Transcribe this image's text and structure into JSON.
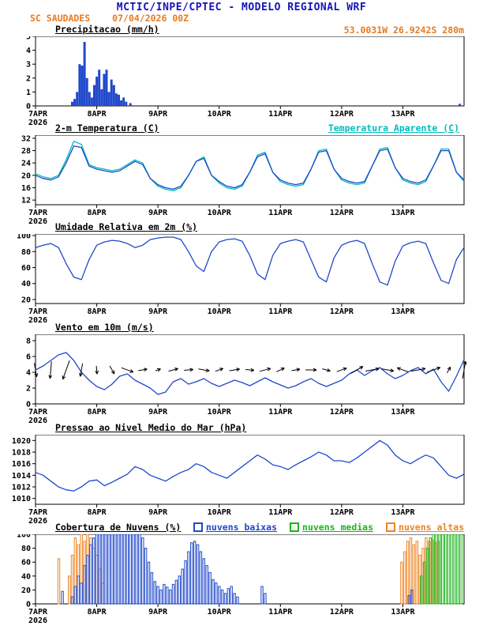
{
  "header": {
    "title": "MCTIC/INPE/CPTEC - MODELO REGIONAL WRF",
    "station": "SC SAUDADES",
    "run": "07/04/2026 00Z",
    "location": "53.0031W 26.9242S 280m",
    "title_color": "#1414b8",
    "accent_color": "#e87a20"
  },
  "x_axis": {
    "day_labels": [
      "7APR",
      "8APR",
      "9APR",
      "10APR",
      "11APR",
      "12APR",
      "13APR"
    ],
    "year_label": "2026",
    "t_range_days": [
      0,
      7
    ]
  },
  "chart_data": [
    {
      "id": "precipitacao",
      "type": "bar",
      "title": "Precipitacao (mm/h)",
      "ylim": [
        0,
        5
      ],
      "yticks": [
        0,
        1,
        2,
        3,
        4,
        5
      ],
      "series": [
        {
          "name": "precipitacao",
          "color": "#1f48cc",
          "points": [
            [
              0.6,
              0.3
            ],
            [
              0.64,
              0.5
            ],
            [
              0.68,
              1.0
            ],
            [
              0.72,
              3.0
            ],
            [
              0.76,
              2.9
            ],
            [
              0.8,
              4.6
            ],
            [
              0.84,
              2.0
            ],
            [
              0.88,
              1.0
            ],
            [
              0.92,
              0.6
            ],
            [
              0.96,
              1.5
            ],
            [
              1.0,
              2.1
            ],
            [
              1.04,
              2.6
            ],
            [
              1.08,
              1.2
            ],
            [
              1.12,
              2.3
            ],
            [
              1.16,
              2.6
            ],
            [
              1.2,
              1.0
            ],
            [
              1.24,
              1.9
            ],
            [
              1.28,
              1.5
            ],
            [
              1.32,
              0.9
            ],
            [
              1.36,
              0.8
            ],
            [
              1.4,
              0.4
            ],
            [
              1.44,
              0.6
            ],
            [
              1.48,
              0.3
            ],
            [
              1.55,
              0.2
            ],
            [
              6.93,
              0.15
            ]
          ]
        }
      ]
    },
    {
      "id": "temperatura",
      "type": "line",
      "title": "2-m Temperatura (C)",
      "right_label": {
        "text": "Temperatura Aparente (C)",
        "color": "#00bcbc"
      },
      "ylim": [
        10.5,
        33
      ],
      "yticks": [
        12,
        16,
        20,
        24,
        28,
        32
      ],
      "t_step": 0.125,
      "series": [
        {
          "name": "temperatura-aparente",
          "color": "#00bcbc",
          "values": [
            20.5,
            19.5,
            19,
            20,
            25,
            31,
            30,
            23.5,
            22.5,
            22,
            21.5,
            22,
            23.5,
            25,
            24,
            19,
            16.5,
            15.5,
            15,
            16,
            20,
            24.5,
            26,
            20,
            17.5,
            16,
            15.5,
            16.5,
            21,
            26.5,
            27.5,
            21,
            18,
            17,
            16.5,
            17,
            22,
            28,
            28.5,
            22,
            18.5,
            17.5,
            17,
            17.5,
            23,
            28.5,
            29,
            22.5,
            18.5,
            17.5,
            17,
            18,
            23,
            28.5,
            28.5,
            21,
            18
          ]
        },
        {
          "name": "temperatura-2m",
          "color": "#1f48cc",
          "values": [
            20,
            19,
            18.5,
            19.5,
            24,
            29.5,
            29,
            23,
            22,
            21.5,
            21,
            21.5,
            23,
            24.5,
            23.5,
            19,
            17,
            16,
            15.5,
            16.5,
            20,
            24.5,
            25.5,
            20,
            18,
            16.5,
            16,
            17,
            21,
            26,
            27,
            21,
            18.5,
            17.5,
            17,
            17.5,
            22,
            27.5,
            28,
            22,
            19,
            18,
            17.5,
            18,
            23,
            28,
            28.5,
            22.5,
            19,
            18,
            17.5,
            18.5,
            23,
            28,
            28,
            21,
            18.5
          ]
        }
      ]
    },
    {
      "id": "umidade",
      "type": "line",
      "title": "Umidade Relativa em 2m (%)",
      "ylim": [
        15,
        102
      ],
      "yticks": [
        20,
        40,
        60,
        80,
        100
      ],
      "t_step": 0.125,
      "series": [
        {
          "name": "umidade-relativa",
          "color": "#1f48cc",
          "values": [
            85,
            88,
            90,
            85,
            65,
            48,
            45,
            70,
            88,
            92,
            94,
            93,
            90,
            85,
            88,
            95,
            97,
            98,
            98,
            95,
            80,
            62,
            55,
            80,
            92,
            95,
            96,
            93,
            75,
            52,
            45,
            75,
            90,
            93,
            95,
            92,
            70,
            48,
            42,
            72,
            88,
            92,
            94,
            90,
            65,
            42,
            38,
            68,
            87,
            91,
            93,
            90,
            66,
            44,
            40,
            70,
            85
          ]
        }
      ]
    },
    {
      "id": "vento",
      "type": "line",
      "title": "Vento em 10m (m/s)",
      "ylim": [
        0,
        8.8
      ],
      "yticks": [
        0,
        2,
        4,
        6,
        8
      ],
      "t_step": 0.125,
      "series": [
        {
          "name": "vento-velocidade",
          "color": "#1f48cc",
          "values": [
            4.3,
            4.8,
            5.5,
            6.2,
            6.5,
            5.5,
            4,
            3,
            2.2,
            1.8,
            2.5,
            3.5,
            3.8,
            3,
            2.5,
            2,
            1.2,
            1.5,
            2.8,
            3.2,
            2.5,
            2.8,
            3.2,
            2.6,
            2.2,
            2.6,
            3,
            2.7,
            2.3,
            2.8,
            3.3,
            2.8,
            2.4,
            2,
            2.3,
            2.8,
            3.2,
            2.6,
            2.2,
            2.6,
            3,
            3.8,
            4.3,
            3.6,
            4.2,
            4.6,
            3.8,
            3.2,
            3.6,
            4.2,
            4.6,
            3.8,
            4.4,
            2.8,
            1.6,
            3.5,
            5.6
          ]
        }
      ],
      "arrows": {
        "name": "vento-vetores",
        "color": "#000000",
        "t_step": 0.25,
        "anchor_value": 4.3,
        "angles_deg": [
          -80,
          -95,
          -110,
          -100,
          -85,
          -60,
          -20,
          10,
          20,
          15,
          5,
          -10,
          20,
          10,
          -5,
          15,
          25,
          10,
          0,
          -15,
          20,
          30,
          10,
          -10,
          160,
          10,
          20,
          60,
          80
        ]
      }
    },
    {
      "id": "pressao",
      "type": "line",
      "title": "Pressao ao Nivel Medio do Mar (hPa)",
      "ylim": [
        1009,
        1021
      ],
      "yticks": [
        1010,
        1012,
        1014,
        1016,
        1018,
        1020
      ],
      "t_step": 0.125,
      "series": [
        {
          "name": "pressao-nivel-mar",
          "color": "#1f48cc",
          "values": [
            1014.5,
            1014,
            1013,
            1012,
            1011.5,
            1011.3,
            1012,
            1013,
            1013.2,
            1012.2,
            1012.8,
            1013.5,
            1014.2,
            1015.5,
            1015,
            1014,
            1013.5,
            1013,
            1013.8,
            1014.5,
            1015,
            1016,
            1015.5,
            1014.5,
            1014,
            1013.5,
            1014.5,
            1015.5,
            1016.5,
            1017.5,
            1016.8,
            1015.8,
            1015.5,
            1015,
            1015.8,
            1016.5,
            1017.2,
            1018,
            1017.5,
            1016.5,
            1016.5,
            1016.2,
            1017,
            1018,
            1019,
            1020,
            1019.2,
            1017.5,
            1016.5,
            1016,
            1016.8,
            1017.5,
            1017,
            1015.5,
            1014,
            1013.5,
            1014.2
          ]
        }
      ]
    },
    {
      "id": "nuvens",
      "type": "bar",
      "title": "Cobertura de Nuvens (%)",
      "ylim": [
        0,
        100
      ],
      "yticks": [
        0,
        20,
        40,
        60,
        80,
        100
      ],
      "legend": [
        {
          "label": "nuvens baixas",
          "color": "#1f48cc"
        },
        {
          "label": "nuvens medias",
          "color": "#1cb41c"
        },
        {
          "label": "nuvens altas",
          "color": "#ee8422"
        }
      ],
      "series": [
        {
          "name": "nuvens-altas",
          "color": "#ee8422",
          "points": [
            [
              0.38,
              65
            ],
            [
              0.55,
              40
            ],
            [
              0.6,
              70
            ],
            [
              0.65,
              95
            ],
            [
              0.7,
              85
            ],
            [
              0.75,
              100
            ],
            [
              0.8,
              90
            ],
            [
              0.85,
              100
            ],
            [
              0.9,
              95
            ],
            [
              0.95,
              80
            ],
            [
              1.0,
              70
            ],
            [
              1.05,
              50
            ],
            [
              1.1,
              30
            ],
            [
              5.98,
              60
            ],
            [
              6.03,
              75
            ],
            [
              6.08,
              90
            ],
            [
              6.13,
              95
            ],
            [
              6.18,
              85
            ],
            [
              6.23,
              90
            ],
            [
              6.28,
              70
            ],
            [
              6.33,
              80
            ],
            [
              6.38,
              95
            ],
            [
              6.43,
              90
            ],
            [
              6.48,
              92
            ],
            [
              6.53,
              88
            ],
            [
              6.58,
              90
            ]
          ]
        },
        {
          "name": "nuvens-medias",
          "color": "#1cb41c",
          "points": [
            [
              6.3,
              40
            ],
            [
              6.35,
              60
            ],
            [
              6.4,
              80
            ],
            [
              6.45,
              95
            ],
            [
              6.5,
              100
            ],
            [
              6.55,
              100
            ],
            [
              6.6,
              100
            ],
            [
              6.65,
              100
            ],
            [
              6.7,
              100
            ],
            [
              6.75,
              100
            ],
            [
              6.8,
              100
            ],
            [
              6.85,
              100
            ],
            [
              6.9,
              100
            ],
            [
              6.95,
              100
            ]
          ]
        },
        {
          "name": "nuvens-baixas",
          "color": "#1f48cc",
          "points": [
            [
              0.44,
              18
            ],
            [
              0.6,
              10
            ],
            [
              0.65,
              25
            ],
            [
              0.7,
              40
            ],
            [
              0.75,
              30
            ],
            [
              0.8,
              55
            ],
            [
              0.85,
              70
            ],
            [
              0.9,
              85
            ],
            [
              0.95,
              95
            ],
            [
              1.0,
              100
            ],
            [
              1.05,
              100
            ],
            [
              1.1,
              100
            ],
            [
              1.15,
              100
            ],
            [
              1.2,
              100
            ],
            [
              1.25,
              100
            ],
            [
              1.3,
              100
            ],
            [
              1.35,
              100
            ],
            [
              1.4,
              100
            ],
            [
              1.45,
              100
            ],
            [
              1.5,
              100
            ],
            [
              1.55,
              100
            ],
            [
              1.6,
              100
            ],
            [
              1.65,
              100
            ],
            [
              1.7,
              100
            ],
            [
              1.75,
              95
            ],
            [
              1.8,
              80
            ],
            [
              1.85,
              60
            ],
            [
              1.9,
              45
            ],
            [
              1.95,
              32
            ],
            [
              2.0,
              25
            ],
            [
              2.05,
              20
            ],
            [
              2.1,
              28
            ],
            [
              2.15,
              24
            ],
            [
              2.2,
              20
            ],
            [
              2.25,
              28
            ],
            [
              2.3,
              34
            ],
            [
              2.35,
              40
            ],
            [
              2.4,
              50
            ],
            [
              2.45,
              62
            ],
            [
              2.5,
              75
            ],
            [
              2.55,
              88
            ],
            [
              2.6,
              90
            ],
            [
              2.65,
              85
            ],
            [
              2.7,
              75
            ],
            [
              2.75,
              65
            ],
            [
              2.8,
              55
            ],
            [
              2.85,
              45
            ],
            [
              2.9,
              35
            ],
            [
              2.95,
              30
            ],
            [
              3.0,
              25
            ],
            [
              3.05,
              20
            ],
            [
              3.1,
              15
            ],
            [
              3.15,
              22
            ],
            [
              3.2,
              25
            ],
            [
              3.25,
              15
            ],
            [
              3.3,
              10
            ],
            [
              3.7,
              25
            ],
            [
              3.75,
              15
            ],
            [
              6.1,
              12
            ],
            [
              6.15,
              20
            ]
          ]
        }
      ]
    }
  ]
}
